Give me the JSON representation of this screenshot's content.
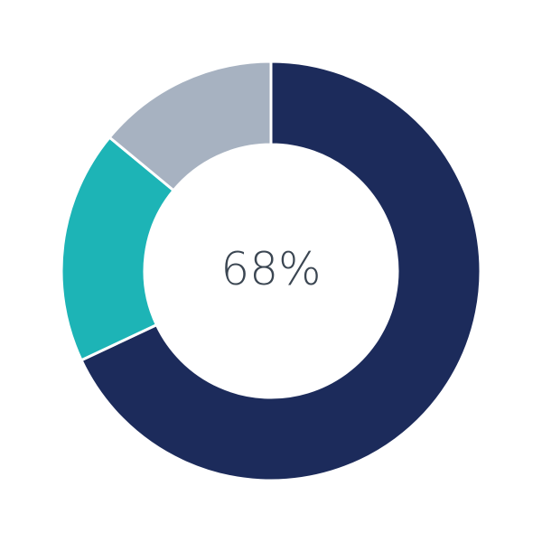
{
  "chart_data": {
    "type": "donut",
    "center_label": "68%",
    "values": [
      68,
      18,
      14
    ],
    "colors": [
      "#1c2b5b",
      "#1db4b6",
      "#a7b2c1"
    ]
  }
}
